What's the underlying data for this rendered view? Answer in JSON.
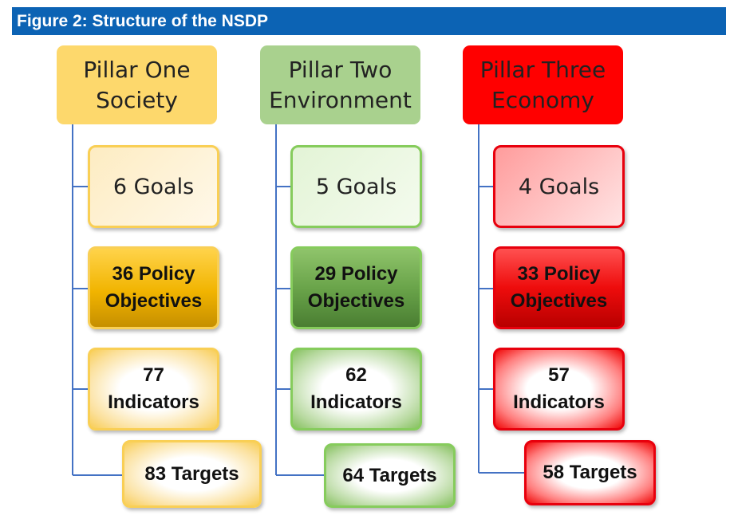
{
  "figure_title": "Figure 2: Structure of the NSDP",
  "colors": {
    "title_bar": "#0c63b4",
    "connector": "#4472c4",
    "pillar_one": "#fdd86c",
    "pillar_two": "#a9d18e",
    "pillar_three": "#ff0000"
  },
  "pillars": [
    {
      "heading": "Pillar One\nSociety",
      "goals": "6 Goals",
      "policy_objectives": "36 Policy\nObjectives",
      "indicators": "77\nIndicators",
      "targets": "83 Targets"
    },
    {
      "heading": "Pillar Two\nEnvironment",
      "goals": "5 Goals",
      "policy_objectives": "29 Policy\nObjectives",
      "indicators": "62\nIndicators",
      "targets": "64 Targets"
    },
    {
      "heading": "Pillar Three\nEconomy",
      "goals": "4 Goals",
      "policy_objectives": "33 Policy\nObjectives",
      "indicators": "57\nIndicators",
      "targets": "58 Targets"
    }
  ]
}
